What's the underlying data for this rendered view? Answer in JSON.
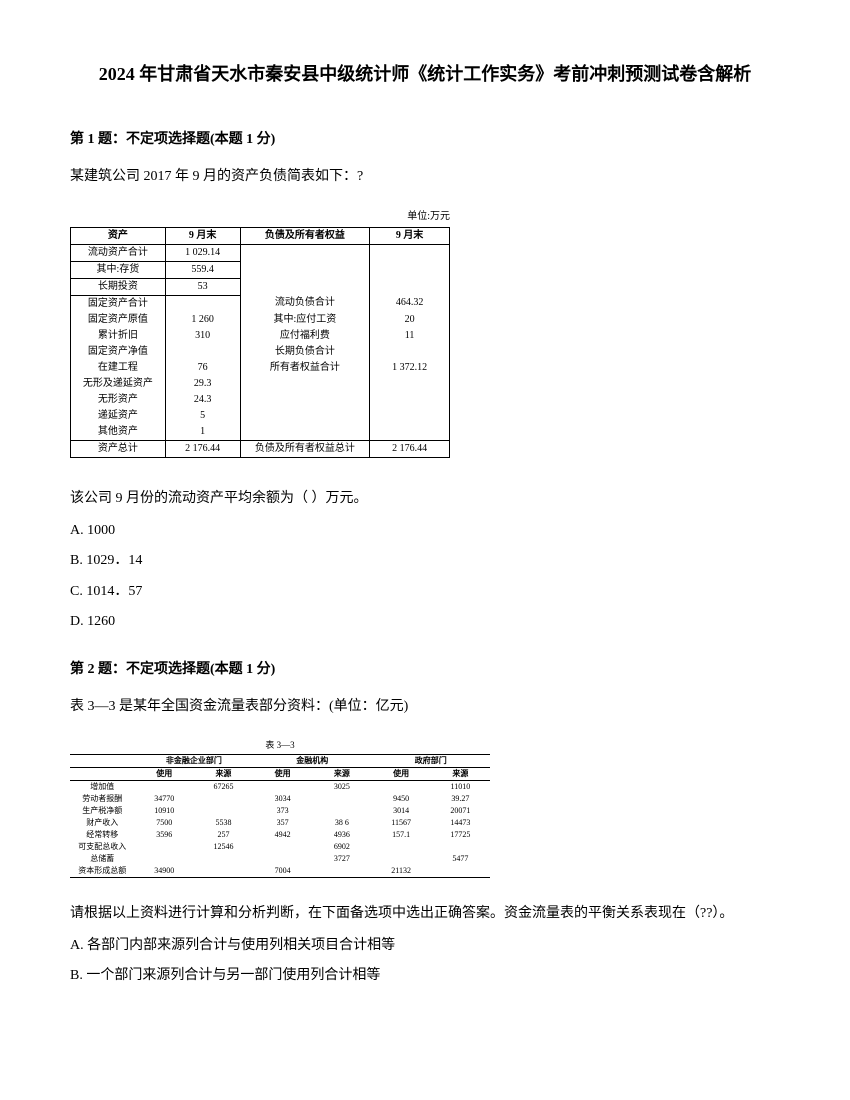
{
  "title": "2024 年甘肃省天水市秦安县中级统计师《统计工作实务》考前冲刺预测试卷含解析",
  "q1": {
    "header": "第 1 题：不定项选择题(本题 1 分)",
    "text": "某建筑公司 2017 年 9 月的资产负债简表如下：?",
    "table_unit": "单位:万元",
    "headers": [
      "资产",
      "9 月末",
      "负债及所有者权益",
      "9 月末"
    ],
    "rows": [
      [
        "流动资产合计",
        "1 029.14",
        "",
        ""
      ],
      [
        "其中:存货",
        "559.4",
        "",
        ""
      ],
      [
        "长期投资",
        "53",
        "",
        ""
      ],
      [
        "固定资产合计",
        "",
        "流动负债合计",
        "464.32"
      ],
      [
        "固定资产原值",
        "1 260",
        "其中:应付工资",
        "20"
      ],
      [
        "累计折旧",
        "310",
        "应付福利费",
        "11"
      ],
      [
        "固定资产净值",
        "",
        "长期负债合计",
        ""
      ],
      [
        "在建工程",
        "76",
        "所有者权益合计",
        "1 372.12"
      ],
      [
        "无形及递延资产",
        "29.3",
        "",
        ""
      ],
      [
        "无形资产",
        "24.3",
        "",
        ""
      ],
      [
        "递延资产",
        "5",
        "",
        ""
      ],
      [
        "其他资产",
        "1",
        "",
        ""
      ]
    ],
    "footer": [
      "资产总计",
      "2 176.44",
      "负债及所有者权益总计",
      "2 176.44"
    ],
    "prompt": "该公司 9 月份的流动资产平均余额为（ ）万元。",
    "options": [
      "A. 1000",
      "B. 1029．14",
      "C. 1014．57",
      "D. 1260"
    ]
  },
  "q2": {
    "header": "第 2 题：不定项选择题(本题 1 分)",
    "text": "表 3—3 是某年全国资金流量表部分资料：(单位：亿元)",
    "table_title": "表 3—3",
    "col_groups": [
      "",
      "非金融企业部门",
      "金融机构",
      "政府部门"
    ],
    "sub_headers": [
      "",
      "使用",
      "来源",
      "使用",
      "来源",
      "使用",
      "来源"
    ],
    "rows": [
      [
        "增加值",
        "",
        "67265",
        "",
        "3025",
        "",
        "11010"
      ],
      [
        "劳动者报酬",
        "34770",
        "",
        "3034",
        "",
        "9450",
        "39.27"
      ],
      [
        "生产税净额",
        "10910",
        "",
        "373",
        "",
        "3014",
        "20071"
      ],
      [
        "财产收入",
        "7500",
        "5538",
        "357",
        "38 6",
        "11567",
        "14473"
      ],
      [
        "经常转移",
        "3596",
        "257",
        "4942",
        "4936",
        "157.1",
        "17725"
      ],
      [
        "可支配总收入",
        "",
        "12546",
        "",
        "6902",
        "",
        ""
      ],
      [
        "总储蓄",
        "",
        "",
        "",
        "3727",
        "",
        "5477"
      ],
      [
        "资本形成总额",
        "34900",
        "",
        "7004",
        "",
        "21132",
        ""
      ]
    ],
    "prompt": "请根据以上资料进行计算和分析判断，在下面备选项中选出正确答案。资金流量表的平衡关系表现在（??）。",
    "options": [
      "A. 各部门内部来源列合计与使用列相关项目合计相等",
      "B. 一个部门来源列合计与另一部门使用列合计相等"
    ]
  }
}
